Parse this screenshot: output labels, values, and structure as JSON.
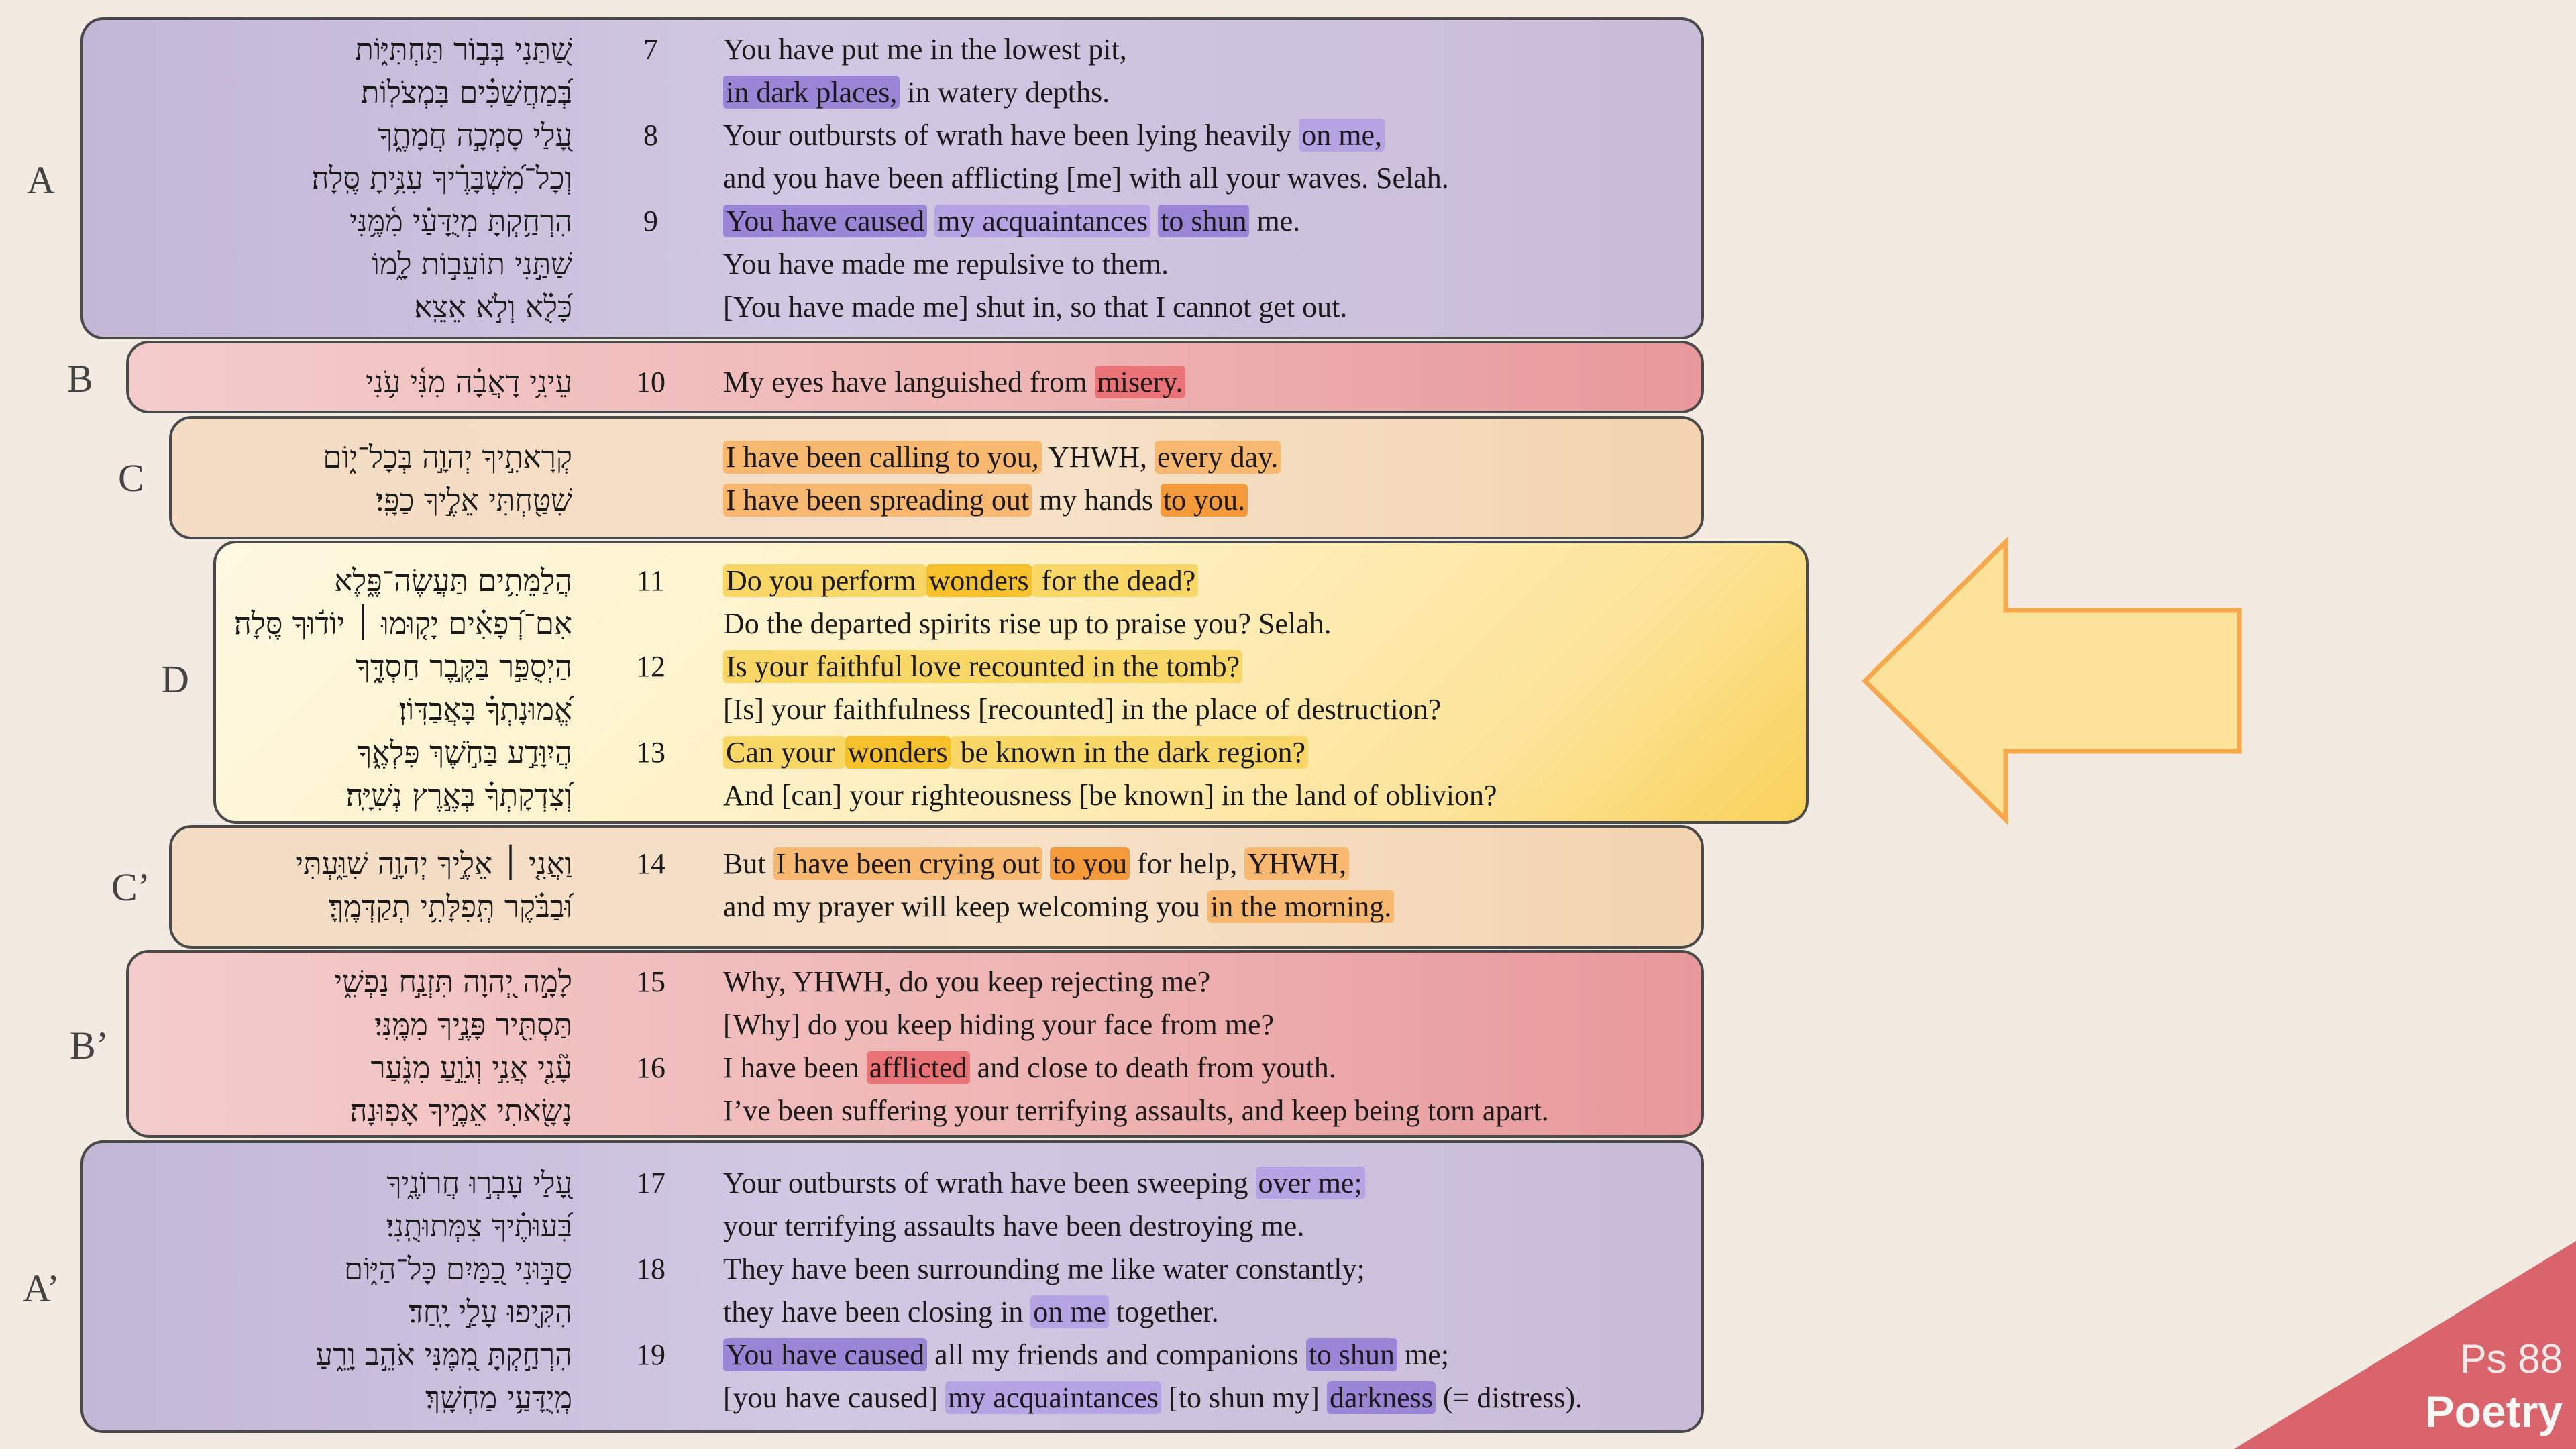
{
  "colors": {
    "purple_strong": "#9b85d6",
    "purple_light": "#b6a3e4",
    "red_strong": "#e2474a",
    "red_light": "#e97376",
    "orange_strong": "#f59a3b",
    "orange_light": "#f9b86f",
    "yellow_strong": "#f7c12c",
    "yellow_light": "#f9d766",
    "corner": "#d9646c",
    "arrow_fill": "#fde39a",
    "arrow_stroke": "#f6a84a"
  },
  "corner": {
    "ref": "Ps 88",
    "genre": "Poetry"
  },
  "arrow_icon": "left-arrow",
  "sections": [
    {
      "label": "A",
      "rows": [
        {
          "heb": "שַׁ֭תַּנִי בְּב֣וֹר תַּחְתִּיּ֑וֹת",
          "verse": "7",
          "eng": [
            {
              "t": "You have put me in the lowest pit,"
            }
          ]
        },
        {
          "heb": "בְּ֝מַחֲשַׁכִּ֗ים בִּמְצֹלֽוֹת׃",
          "verse": "",
          "eng": [
            {
              "t": "in dark places,",
              "h": "pu1"
            },
            {
              "t": " in watery depths."
            }
          ]
        },
        {
          "heb": "עָ֭לַי סָמְכָ֣ה חֲמָתֶ֑ךָ",
          "verse": "8",
          "eng": [
            {
              "t": "Your outbursts of wrath have been lying heavily "
            },
            {
              "t": "on me,",
              "h": "pu2"
            }
          ]
        },
        {
          "heb": "וְכָל־מִ֝שְׁבָּרֶ֗יךָ עִנִּ֥יתָ סֶּֽלָה׃",
          "verse": "",
          "eng": [
            {
              "t": "and you have been afflicting [me] with all your waves. Selah."
            }
          ]
        },
        {
          "heb": "הִרְחַ֥קְתָּ מְיֻדָּעַ֗י מִ֫מֶּ֥נִּי",
          "verse": "9",
          "eng": [
            {
              "t": "You have caused",
              "h": "pu1"
            },
            {
              "t": " "
            },
            {
              "t": "my acquaintances",
              "h": "pu2"
            },
            {
              "t": " "
            },
            {
              "t": "to shun",
              "h": "pu1"
            },
            {
              "t": " me."
            }
          ]
        },
        {
          "heb": "שַׁתַּ֣נִי תוֹעֵב֣וֹת לָ֑מוֹ",
          "verse": "",
          "eng": [
            {
              "t": "You have made me repulsive to them."
            }
          ]
        },
        {
          "heb": "כָּ֝לֻ֗א וְלֹ֣א אֵצֵֽא׃",
          "verse": "",
          "eng": [
            {
              "t": "[You have made me] shut in, so that I cannot get out."
            }
          ]
        }
      ]
    },
    {
      "label": "B",
      "rows": [
        {
          "heb": "עֵינִ֥י דָאֲבָ֗ה מִנִּ֫י עֹ֥נִי",
          "verse": "10",
          "eng": [
            {
              "t": "My eyes have languished from "
            },
            {
              "t": "misery.",
              "h": "r2"
            }
          ]
        }
      ]
    },
    {
      "label": "C",
      "rows": [
        {
          "heb": "קְרָאתִ֣יךָ יְהוָ֣ה בְּכָל־י֑וֹם",
          "verse": "",
          "eng": [
            {
              "t": "I have been calling to you,",
              "h": "o2"
            },
            {
              "t": " YHWH, "
            },
            {
              "t": "every day.",
              "h": "o2"
            }
          ]
        },
        {
          "heb": "שִׁטַּ֖חְתִּי אֵלֶ֣יךָ כַפָּֽי׃",
          "verse": "",
          "eng": [
            {
              "t": "I have been spreading out",
              "h": "o2"
            },
            {
              "t": " my hands "
            },
            {
              "t": "to you.",
              "h": "o1"
            }
          ]
        }
      ]
    },
    {
      "label": "D",
      "rows": [
        {
          "heb": "הֲלַמֵּתִ֥ים תַּעֲשֶׂה־פֶּ֑לֶא",
          "verse": "11",
          "eng": [
            {
              "t": "Do you perform ",
              "h": "y2"
            },
            {
              "t": "wonders",
              "h": "y1"
            },
            {
              "t": " for the dead?",
              "h": "y2"
            }
          ]
        },
        {
          "heb": "אִם־רְ֝פָאִ֗ים יָק֤וּמוּ ׀ יוֹד֬וּךָ סֶּֽלָה׃",
          "verse": "",
          "eng": [
            {
              "t": "Do the departed spirits rise up to praise you? Selah."
            }
          ]
        },
        {
          "heb": "הַיְסֻפַּ֣ר בַּקֶּ֣בֶר חַסְדֶּ֑ךָ",
          "verse": "12",
          "eng": [
            {
              "t": "Is your faithful love recounted in the tomb?",
              "h": "y2"
            }
          ]
        },
        {
          "heb": "אֱ֝מוּנָתְךָ֗ בָּאֲבַדּֽוֹן׃",
          "verse": "",
          "eng": [
            {
              "t": "[Is] your faithfulness [recounted] in the place of destruction?"
            }
          ]
        },
        {
          "heb": "הֲיִוָּדַ֣ע בַּחֹ֣שֶׁךְ פִּלְאֶ֑ךָ",
          "verse": "13",
          "eng": [
            {
              "t": "Can your ",
              "h": "y2"
            },
            {
              "t": "wonders",
              "h": "y1"
            },
            {
              "t": " be known in the dark region?",
              "h": "y2"
            }
          ]
        },
        {
          "heb": "וְ֝צִדְקָתְךָ֗ בְּאֶ֣רֶץ נְשִׁיָּֽה׃",
          "verse": "",
          "eng": [
            {
              "t": "And [can] your righteousness [be known] in the land of oblivion?"
            }
          ]
        }
      ]
    },
    {
      "label": "C’",
      "rows": [
        {
          "heb": "וַאֲנִ֤י ׀ אֵלֶ֣יךָ יְהוָ֣ה שִׁוַּ֑עְתִּי",
          "verse": "14",
          "eng": [
            {
              "t": "But "
            },
            {
              "t": "I have been crying out",
              "h": "o2"
            },
            {
              "t": " "
            },
            {
              "t": "to you",
              "h": "o1"
            },
            {
              "t": " for help, "
            },
            {
              "t": "YHWH,",
              "h": "o2"
            }
          ]
        },
        {
          "heb": "וּ֝בַבֹּ֗קֶר תְּֽפִלָּתִ֥י תְקַדְּמֶֽךָּ׃",
          "verse": "",
          "eng": [
            {
              "t": "and my prayer will keep welcoming you "
            },
            {
              "t": "in the morning.",
              "h": "o2"
            }
          ]
        }
      ]
    },
    {
      "label": "B’",
      "rows": [
        {
          "heb": "לָמָ֣ה יְ֭הוָה תִּזְנַ֣ח נַפְשִׁ֑י",
          "verse": "15",
          "eng": [
            {
              "t": "Why, YHWH, do you keep rejecting me?"
            }
          ]
        },
        {
          "heb": "תַּסְתִּ֖יר פָּנֶ֣יךָ מִמֶּֽנִּי׃",
          "verse": "",
          "eng": [
            {
              "t": "[Why] do you keep hiding your face from me?"
            }
          ]
        },
        {
          "heb": "עָ֘נִ֤י אֲנִ֣י וְגֹוֵ֣עַ מִנֹּ֑עַר",
          "verse": "16",
          "eng": [
            {
              "t": "I have been "
            },
            {
              "t": "afflicted",
              "h": "r2"
            },
            {
              "t": " and close to death from youth."
            }
          ]
        },
        {
          "heb": "נָשָׂ֖אתִי אֵמֶ֣יךָ אָפֽוּנָה׃",
          "verse": "",
          "eng": [
            {
              "t": "I’ve been suffering your terrifying assaults, and keep being torn apart."
            }
          ]
        }
      ]
    },
    {
      "label": "A’",
      "rows": [
        {
          "heb": "עָ֭לַי עָבְר֣וּ חֲרוֹנֶ֑יךָ",
          "verse": "17",
          "eng": [
            {
              "t": "Your outbursts of wrath have been sweeping "
            },
            {
              "t": "over me;",
              "h": "pu2"
            }
          ]
        },
        {
          "heb": "בִּ֝עוּתֶ֗יךָ צִמְּתוּתֻֽנִי׃",
          "verse": "",
          "eng": [
            {
              "t": "your terrifying assaults have been destroying me."
            }
          ]
        },
        {
          "heb": "סַבּ֣וּנִי כַ֭מַּיִם כָּל־הַיּ֑וֹם",
          "verse": "18",
          "eng": [
            {
              "t": "They have been surrounding me like water constantly;"
            }
          ]
        },
        {
          "heb": "הִקִּ֖יפוּ עָלַ֣י יָֽחַד׃",
          "verse": "",
          "eng": [
            {
              "t": "they have been closing in "
            },
            {
              "t": "on me",
              "h": "pu2"
            },
            {
              "t": " together."
            }
          ]
        },
        {
          "heb": "הִרְחַ֣קְתָּ מִ֭מֶּנִּי אֹהֵ֣ב וָרֵ֑עַ",
          "verse": "19",
          "eng": [
            {
              "t": "You have caused",
              "h": "pu1"
            },
            {
              "t": " all my friends and companions "
            },
            {
              "t": "to shun",
              "h": "pu1"
            },
            {
              "t": " me;"
            }
          ]
        },
        {
          "heb": "מְֽיֻדָּעַ֥י מַחְשָֽׁךְ׃",
          "verse": "",
          "eng": [
            {
              "t": "[you have caused] "
            },
            {
              "t": "my acquaintances",
              "h": "pu2"
            },
            {
              "t": " [to shun my] "
            },
            {
              "t": "darkness",
              "h": "pu1"
            },
            {
              "t": " (= distress)."
            }
          ]
        }
      ]
    }
  ]
}
